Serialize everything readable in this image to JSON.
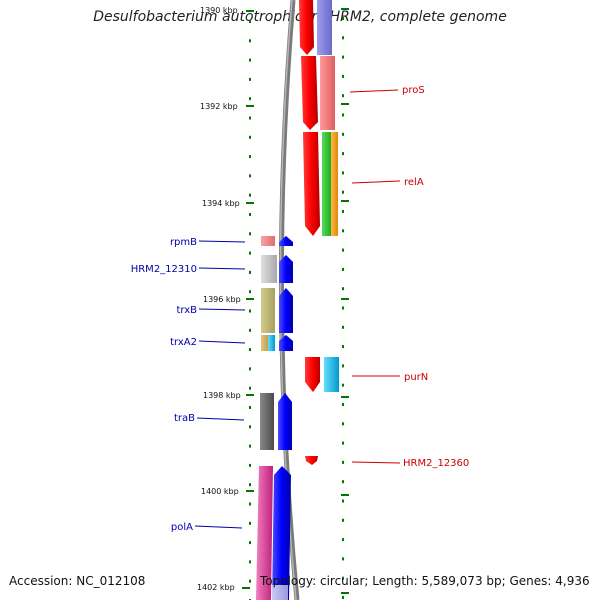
{
  "title": "Desulfobacterium autotrophicum HRM2, complete genome",
  "footer": {
    "accession": "Accession: NC_012108",
    "topology": "Topology: circular; Length: 5,589,073 bp; Genes: 4,936"
  },
  "axis_ticks": [
    "1390 kbp",
    "1392 kbp",
    "1394 kbp",
    "1396 kbp",
    "1398 kbp",
    "1400 kbp",
    "1402 kbp"
  ],
  "left_labels": [
    "rpmB",
    "HRM2_12310",
    "trxB",
    "trxA2",
    "traB",
    "polA"
  ],
  "right_labels": [
    "proS",
    "relA",
    "purN",
    "HRM2_12360"
  ],
  "colors": {
    "left_label": "#0000aa",
    "right_label": "#cc0000",
    "forward_gene": "#0000ff",
    "reverse_gene": "#ff0000",
    "tick": "#007700"
  }
}
